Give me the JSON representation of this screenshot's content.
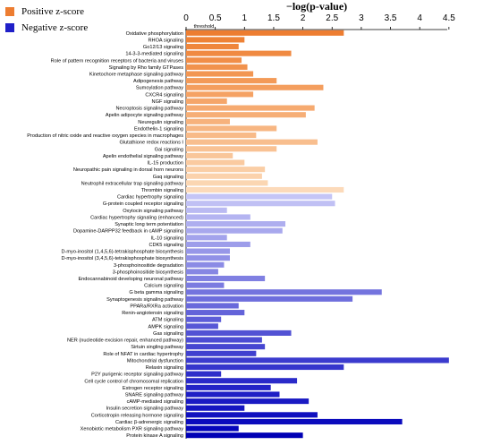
{
  "chart_data": {
    "type": "bar",
    "orientation": "horizontal",
    "xlabel": "−log(p-value)",
    "xlim": [
      0,
      5
    ],
    "xticks": [
      0,
      0.5,
      1,
      1.5,
      2,
      2.5,
      3,
      3.5,
      4,
      4.5
    ],
    "xtick_labels": [
      "0",
      "0.5",
      "1",
      "1.5",
      "2",
      "2.5",
      "3",
      "3.5",
      "4",
      "4.5"
    ],
    "axis_position": "top",
    "grid": false,
    "threshold": {
      "label": "threshold",
      "value": 0.05
    },
    "legend": {
      "placement": "top-left",
      "entries": [
        {
          "name": "Positive z-score",
          "color": "#ED7D31"
        },
        {
          "name": "Negative z-score",
          "color": "#1F1FC8"
        }
      ]
    },
    "categories": [
      "Oxidative phosphorylation",
      "RHOA signaling",
      "Go12/13 signaling",
      "14-3-3-mediated signaling",
      "Role of pattern recognition receptors of bacteria and viruses",
      "Signaling by Rho family GTPases",
      "Kinetochore metaphase signaling pathway",
      "Adipogenesis pathway",
      "Sumoylation pathway",
      "CXCR4 signaling",
      "NGF signaling",
      "Necroptosis signaling pathway",
      "Apelin adipocyte signaling pathway",
      "Neuregulin signaling",
      "Endothelin-1 signaling",
      "Production of nitric oxide and reactive oxygen species in macrophages",
      "Glutathione redox reactions I",
      "Gai signaling",
      "Apelin endothelial signaling pathway",
      "IL-15 production",
      "Neuropathic pain signaling in dorsal horn neurons",
      "Gaq signaling",
      "Neutrophil extracellular trap signaling pathway",
      "Thrombin signaling",
      "Cardiac hypertrophy signaling",
      "G-protein coupled receptor signaling",
      "Oxytocin signaling pathway",
      "Cardiac hypertrophy signaling (enhanced)",
      "Synaptic long term potentiation",
      "Dopamine-DARPP32 feedback in cAMP signaling",
      "IL-10 signaling",
      "CDK5 signaling",
      "D-myo-inositol (1,4,5,6)-tetrakisphosphate biosynthesis",
      "D-myo-inositol (3,4,5,6)-tetrakisphosphate biosynthesis",
      "3-phosphoinositide degradation",
      "3-phosphoinositide biosynthesis",
      "Endocannabinoid developing neuronal pathway",
      "Calcium signaling",
      "G beta gamma signaling",
      "Synaptogenesis signaling pathway",
      "PPARa/RXRa activation",
      "Renin-angiotensin signaling",
      "ATM signaling",
      "AMPK signaling",
      "Gas signaling",
      "NER (nucleotide excision repair, enhanced pathway)",
      "Sirtuin singling pathway",
      "Role of NFAT in cardiac hypertrophy",
      "Mitochondrial dysfunction",
      "Relaxin signaling",
      "P2Y purigenic receptor signaling pathway",
      "Cell cycle control of chromosomal replication",
      "Estrogen receptor signaling",
      "SNARE signaling pathway",
      "cAMP-mediated signaling",
      "Insulin secretion signaling pathway",
      "Corticotropin releasing hormone signaling",
      "Cardiac β-adrenergic signaling",
      "Xenobiotic metabolism PXR signaling pathway",
      "Protein kinase A signaling"
    ],
    "values": [
      2.7,
      1.0,
      0.9,
      1.8,
      0.95,
      1.05,
      1.15,
      1.55,
      2.35,
      1.15,
      0.7,
      2.2,
      2.05,
      0.75,
      1.55,
      1.2,
      2.25,
      1.55,
      0.8,
      1.0,
      1.35,
      1.3,
      1.4,
      2.7,
      2.5,
      2.55,
      0.7,
      1.1,
      1.7,
      1.65,
      0.7,
      1.1,
      0.75,
      0.75,
      0.65,
      0.55,
      1.35,
      0.65,
      3.35,
      2.85,
      0.9,
      1.0,
      0.6,
      0.55,
      1.8,
      1.3,
      1.35,
      1.2,
      4.5,
      2.7,
      0.6,
      1.9,
      1.45,
      1.6,
      2.1,
      1.0,
      2.25,
      3.7,
      0.9,
      2.0
    ],
    "colors": [
      "#ED7D31",
      "#EE8236",
      "#EF863C",
      "#F08A42",
      "#F18E48",
      "#F1924D",
      "#F29652",
      "#F39A58",
      "#F49E5E",
      "#F5A264",
      "#F5A66A",
      "#F6AA70",
      "#F6AE76",
      "#F7B27C",
      "#F7B682",
      "#F8BA88",
      "#F8BE8E",
      "#F9C294",
      "#F9C69A",
      "#FACAA0",
      "#FACEA6",
      "#FBD2AC",
      "#FBD6B2",
      "#FCDABA",
      "#C5C5F6",
      "#C0C0F4",
      "#BABAF2",
      "#B4B4F1",
      "#AEAEEF",
      "#A8A8ED",
      "#A3A3EC",
      "#9D9DEA",
      "#9797E8",
      "#9191E7",
      "#8B8BE5",
      "#8686E3",
      "#8080E2",
      "#7A7AE0",
      "#7474DE",
      "#6E6EDD",
      "#6969DB",
      "#6363D9",
      "#5D5DD8",
      "#5757D6",
      "#5252D4",
      "#4C4CD3",
      "#4646D1",
      "#4040CF",
      "#3B3BCE",
      "#3535CC",
      "#2F2FCA",
      "#2A2AC9",
      "#2424C7",
      "#1F1FC5",
      "#1A1AC3",
      "#1515C1",
      "#1010BF",
      "#0B0BBD",
      "#0606BB",
      "#0000B5"
    ]
  }
}
